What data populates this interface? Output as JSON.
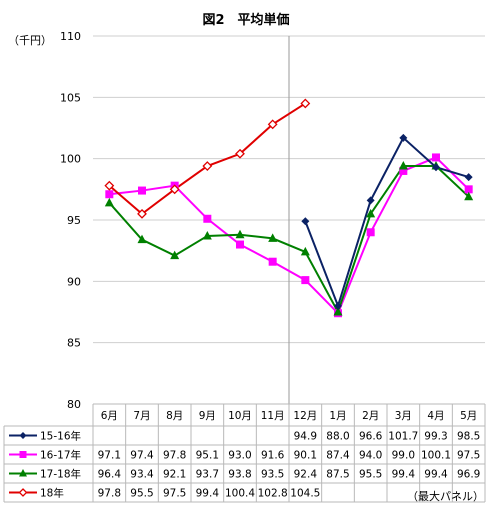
{
  "chart_data": {
    "type": "line",
    "title": "図2　平均単価",
    "ylabel": "（千円）",
    "note": "（最大パネル）",
    "ylim": [
      80,
      110
    ],
    "yticks": [
      80,
      85,
      90,
      95,
      100,
      105,
      110
    ],
    "categories": [
      "6月",
      "7月",
      "8月",
      "9月",
      "10月",
      "11月",
      "12月",
      "1月",
      "2月",
      "3月",
      "4月",
      "5月"
    ],
    "grid": true,
    "legend": "bottom-left (data table)",
    "series": [
      {
        "name": "15-16年",
        "color": "#0b2265",
        "marker": "diamond",
        "values": [
          null,
          null,
          null,
          null,
          null,
          null,
          94.9,
          88.0,
          96.6,
          101.7,
          99.3,
          98.5
        ],
        "labels": [
          "",
          "",
          "",
          "",
          "",
          "",
          "94.9",
          "88.0",
          "96.6",
          "101.7",
          "99.3",
          "98.5"
        ]
      },
      {
        "name": "16-17年",
        "color": "#ff00ff",
        "marker": "square",
        "values": [
          97.1,
          97.4,
          97.8,
          95.1,
          93.0,
          91.6,
          90.1,
          87.4,
          94.0,
          99.0,
          100.1,
          97.5
        ],
        "labels": [
          "97.1",
          "97.4",
          "97.8",
          "95.1",
          "93.0",
          "91.6",
          "90.1",
          "87.4",
          "94.0",
          "99.0",
          "100.1",
          "97.5"
        ]
      },
      {
        "name": "17-18年",
        "color": "#008000",
        "marker": "triangle",
        "values": [
          96.4,
          93.4,
          92.1,
          93.7,
          93.8,
          93.5,
          92.4,
          87.5,
          95.5,
          99.4,
          99.4,
          96.9
        ],
        "labels": [
          "96.4",
          "93.4",
          "92.1",
          "93.7",
          "93.8",
          "93.5",
          "92.4",
          "87.5",
          "95.5",
          "99.4",
          "99.4",
          "96.9"
        ]
      },
      {
        "name": "18年",
        "color": "#e00000",
        "marker": "open-diamond",
        "values": [
          97.8,
          95.5,
          97.5,
          99.4,
          100.4,
          102.8,
          104.5,
          null,
          null,
          null,
          null,
          null
        ],
        "labels": [
          "97.8",
          "95.5",
          "97.5",
          "99.4",
          "100.4",
          "102.8",
          "104.5",
          "",
          "",
          "",
          "",
          ""
        ]
      }
    ]
  }
}
